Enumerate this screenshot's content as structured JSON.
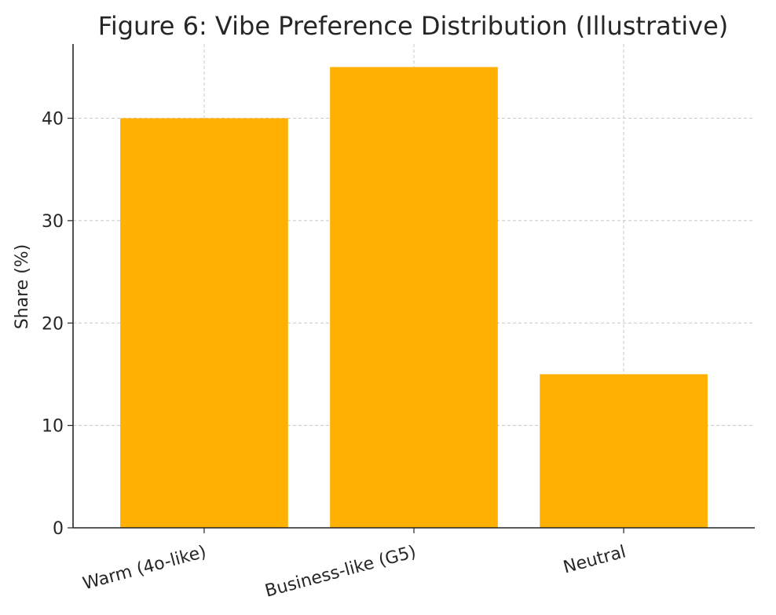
{
  "chart_data": {
    "type": "bar",
    "title": "Figure 6: Vibe Preference Distribution (Illustrative)",
    "xlabel": "",
    "ylabel": "Share (%)",
    "categories": [
      "Warm (4o-like)",
      "Business-like (G5)",
      "Neutral"
    ],
    "values": [
      40,
      45,
      15
    ],
    "ylim": [
      0,
      47.25
    ],
    "yticks": [
      0,
      10,
      20,
      30,
      40
    ],
    "grid": true,
    "bar_color": "#FFB000"
  }
}
